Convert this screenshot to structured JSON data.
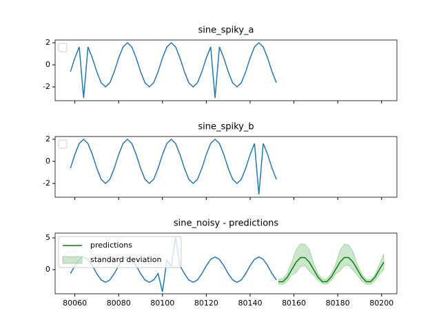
{
  "chart_data": [
    {
      "type": "line",
      "title": "sine_spiky_a",
      "legend": "upper left",
      "x": [
        80058,
        80060,
        80062,
        80064,
        80066,
        80068,
        80070,
        80072,
        80074,
        80076,
        80078,
        80080,
        80082,
        80084,
        80086,
        80088,
        80090,
        80092,
        80094,
        80096,
        80098,
        80100,
        80102,
        80104,
        80106,
        80108,
        80110,
        80112,
        80114,
        80116,
        80118,
        80120,
        80122,
        80124,
        80126,
        80128,
        80130,
        80132,
        80134,
        80136,
        80138,
        80140,
        80142,
        80144,
        80146,
        80148,
        80150,
        80152
      ],
      "series": [
        {
          "color": "#1f77b4",
          "values": [
            -0.62,
            0.62,
            1.62,
            -3,
            1.62,
            0.62,
            -0.62,
            -1.62,
            -2,
            -1.62,
            -0.62,
            0.62,
            1.62,
            2,
            1.62,
            0.62,
            -0.62,
            -1.62,
            -2,
            -1.62,
            -0.62,
            0.62,
            1.62,
            2,
            1.62,
            0.62,
            -0.62,
            -1.62,
            -2,
            -1.62,
            -0.62,
            0.62,
            1.62,
            -3,
            1.62,
            0.62,
            -0.62,
            -1.62,
            -2,
            -1.62,
            -0.62,
            0.62,
            1.62,
            2,
            1.62,
            0.62,
            -0.62,
            -1.62
          ]
        }
      ],
      "xlim": [
        80051,
        80207
      ],
      "ylim": [
        -3.25,
        2.25
      ],
      "yticks": [
        -2,
        0,
        2
      ]
    },
    {
      "type": "line",
      "title": "sine_spiky_b",
      "legend": "upper left",
      "x": [
        80058,
        80060,
        80062,
        80064,
        80066,
        80068,
        80070,
        80072,
        80074,
        80076,
        80078,
        80080,
        80082,
        80084,
        80086,
        80088,
        80090,
        80092,
        80094,
        80096,
        80098,
        80100,
        80102,
        80104,
        80106,
        80108,
        80110,
        80112,
        80114,
        80116,
        80118,
        80120,
        80122,
        80124,
        80126,
        80128,
        80130,
        80132,
        80134,
        80136,
        80138,
        80140,
        80142,
        80144,
        80146,
        80148,
        80150,
        80152
      ],
      "series": [
        {
          "color": "#1f77b4",
          "values": [
            -0.62,
            0.62,
            1.62,
            2,
            1.62,
            0.62,
            -0.62,
            -1.62,
            -2,
            -1.62,
            -0.62,
            0.62,
            1.62,
            2,
            1.62,
            0.62,
            -0.62,
            -1.62,
            -2,
            -1.62,
            -0.62,
            0.62,
            1.62,
            2,
            1.62,
            0.62,
            -0.62,
            -1.62,
            -2,
            -1.62,
            -0.62,
            0.62,
            1.62,
            2,
            1.62,
            0.62,
            -0.62,
            -1.62,
            -2,
            -1.62,
            -0.62,
            0.62,
            1.62,
            -3,
            1.62,
            0.62,
            -0.62,
            -1.62
          ]
        }
      ],
      "xlim": [
        80051,
        80207
      ],
      "ylim": [
        -3.25,
        2.25
      ],
      "yticks": [
        -2,
        0,
        2
      ]
    },
    {
      "type": "line",
      "title": "sine_noisy - predictions",
      "legend": "upper left",
      "x": [
        80058,
        80060,
        80062,
        80064,
        80066,
        80068,
        80070,
        80072,
        80074,
        80076,
        80078,
        80080,
        80082,
        80084,
        80086,
        80088,
        80090,
        80092,
        80094,
        80096,
        80098,
        80100,
        80102,
        80104,
        80106,
        80108,
        80110,
        80112,
        80114,
        80116,
        80118,
        80120,
        80122,
        80124,
        80126,
        80128,
        80130,
        80132,
        80134,
        80136,
        80138,
        80140,
        80142,
        80144,
        80146,
        80148,
        80150,
        80152
      ],
      "series": [
        {
          "color": "#1f77b4",
          "values": [
            -0.62,
            0.62,
            1.62,
            2,
            1.62,
            0.62,
            -0.62,
            -1.62,
            -2,
            -1.62,
            -0.62,
            0.62,
            1.62,
            2,
            1.62,
            0.62,
            -0.62,
            -1.62,
            -2,
            -1.62,
            -0.62,
            -3.5,
            1.5,
            0.5,
            5.1,
            0.62,
            -0.62,
            -1.62,
            -2,
            -1.62,
            -0.62,
            0.62,
            1.62,
            2,
            1.62,
            0.62,
            -0.62,
            -1.62,
            -2,
            -1.62,
            -0.62,
            0.62,
            1.62,
            2,
            1.62,
            0.62,
            -0.62,
            -1.62
          ]
        },
        {
          "name": "predictions",
          "color": "#008000",
          "x": [
            80153,
            80155,
            80157,
            80159,
            80161,
            80163,
            80165,
            80167,
            80169,
            80171,
            80173,
            80175,
            80177,
            80179,
            80181,
            80183,
            80185,
            80187,
            80189,
            80191,
            80193,
            80195,
            80197,
            80199,
            80201
          ],
          "values": [
            -1.9,
            -1.9,
            -1.18,
            0,
            1.18,
            1.9,
            1.9,
            1.18,
            0,
            -1.18,
            -1.9,
            -1.9,
            -1.18,
            0,
            1.18,
            1.9,
            1.9,
            1.18,
            0,
            -1.18,
            -1.9,
            -1.9,
            -1.18,
            0,
            1.18
          ]
        },
        {
          "name": "standard deviation",
          "type": "band",
          "color": "#008000",
          "x": [
            80153,
            80155,
            80157,
            80159,
            80161,
            80163,
            80165,
            80167,
            80169,
            80171,
            80173,
            80175,
            80177,
            80179,
            80181,
            80183,
            80185,
            80187,
            80189,
            80191,
            80193,
            80195,
            80197,
            80199,
            80201
          ],
          "upper": [
            -1.5,
            -1.4,
            -0.5,
            1.2,
            3.2,
            4.1,
            4.0,
            3.2,
            1.0,
            -0.6,
            -1.5,
            -1.5,
            -0.6,
            0.8,
            3.0,
            4.0,
            3.9,
            2.8,
            0.8,
            -0.7,
            -1.5,
            -1.6,
            -0.8,
            0.8,
            2.5
          ],
          "lower": [
            -2.3,
            -2.3,
            -1.8,
            -0.8,
            -0.5,
            0.5,
            0.6,
            -0.2,
            -0.9,
            -1.7,
            -2.2,
            -2.3,
            -1.7,
            -0.7,
            -0.2,
            0.6,
            0.7,
            -0.1,
            -0.9,
            -1.8,
            -2.3,
            -2.3,
            -1.7,
            -0.8,
            0
          ]
        }
      ],
      "xlim": [
        80051,
        80207
      ],
      "xticks": [
        80060,
        80080,
        80100,
        80120,
        80140,
        80160,
        80180,
        80200
      ],
      "ylim": [
        -3.8,
        5.76
      ],
      "yticks": [
        0,
        5
      ]
    }
  ]
}
